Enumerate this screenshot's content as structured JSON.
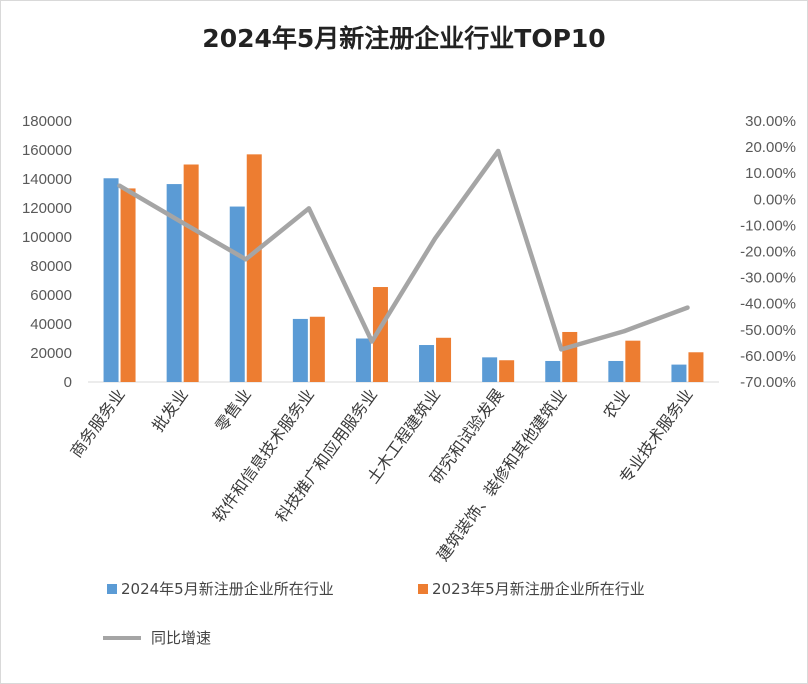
{
  "chart_data": {
    "type": "bar",
    "title": "2024年5月新注册企业行业TOP10",
    "categories": [
      "商务服务业",
      "批发业",
      "零售业",
      "软件和信息技术服务业",
      "科技推广和应用服务业",
      "土木工程建筑业",
      "研究和试验发展",
      "建筑装饰、装修和其他建筑业",
      "农业",
      "专业技术服务业"
    ],
    "series": [
      {
        "name": "2024年5月新注册企业所在行业",
        "type": "bar",
        "axis": "left",
        "color": "#5b9bd5",
        "values": [
          140500,
          136500,
          121000,
          43500,
          30000,
          25500,
          17000,
          14500,
          14500,
          12000
        ]
      },
      {
        "name": "2023年5月新注册企业所在行业",
        "type": "bar",
        "axis": "left",
        "color": "#ed7d31",
        "values": [
          133500,
          150000,
          157000,
          45000,
          65500,
          30500,
          15000,
          34500,
          28500,
          20500
        ]
      },
      {
        "name": "同比增速",
        "type": "line",
        "axis": "right",
        "color": "#a5a5a5",
        "values": [
          5.2,
          -9.0,
          -23.0,
          -3.5,
          -54.5,
          -15.0,
          18.5,
          -57.5,
          -50.5,
          -41.5
        ]
      }
    ],
    "y_left": {
      "min": 0,
      "max": 180000,
      "step": 20000,
      "tick_labels": [
        "0",
        "20000",
        "40000",
        "60000",
        "80000",
        "100000",
        "120000",
        "140000",
        "160000",
        "180000"
      ]
    },
    "y_right": {
      "min": -70,
      "max": 30,
      "step": 10,
      "tick_labels": [
        "-70.00%",
        "-60.00%",
        "-50.00%",
        "-40.00%",
        "-30.00%",
        "-20.00%",
        "-10.00%",
        "0.00%",
        "10.00%",
        "20.00%",
        "30.00%"
      ]
    },
    "grid": false,
    "legend_position": "bottom"
  }
}
